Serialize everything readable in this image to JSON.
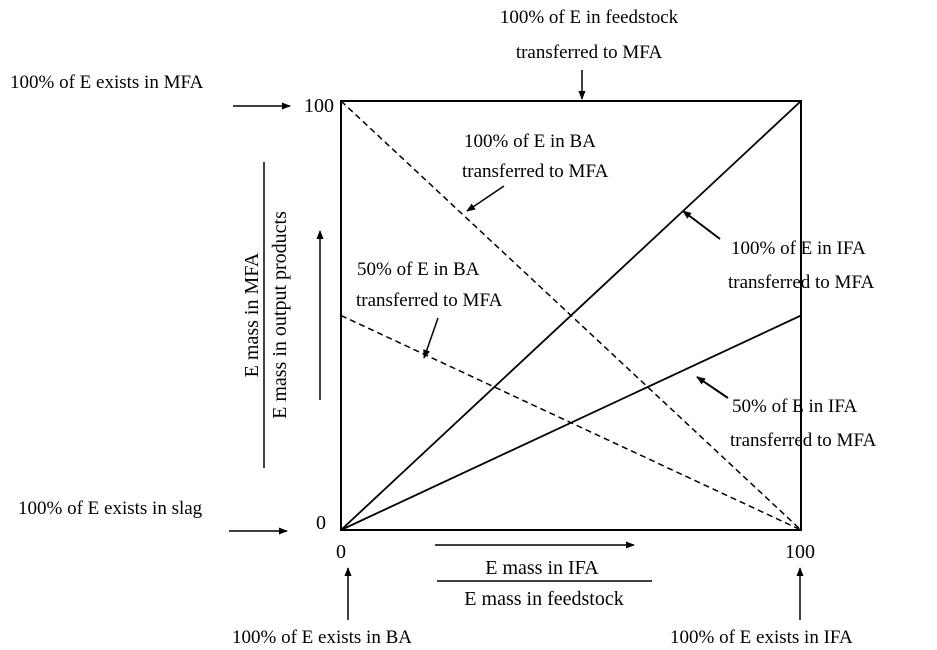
{
  "ticks": {
    "y_top": "100",
    "y_bottom": "0",
    "x_left": "0",
    "x_right": "100"
  },
  "axes": {
    "y_numerator": "E mass in MFA",
    "y_denominator": "E mass in output products",
    "x_numerator": "E mass in IFA",
    "x_denominator": "E mass in feedstock"
  },
  "annotations": {
    "feedstock_mfa": [
      "100% of E in feedstock",
      "transferred to MFA"
    ],
    "exists_mfa": "100% of E exists in MFA",
    "ba100": [
      "100% of E in BA",
      "transferred to MFA"
    ],
    "ifa100": [
      "100% of E in IFA",
      "transferred to MFA"
    ],
    "ba50": [
      "50% of E in BA",
      "transferred to MFA"
    ],
    "ifa50": [
      "50% of E in IFA",
      "transferred to MFA"
    ],
    "exists_slag": "100% of E exists in slag",
    "exists_ba": "100% of E exists in BA",
    "exists_ifa": "100% of E exists in IFA"
  },
  "lines": [
    {
      "from": [
        0,
        0
      ],
      "to": [
        100,
        100
      ],
      "style": "solid"
    },
    {
      "from": [
        0,
        0
      ],
      "to": [
        100,
        50
      ],
      "style": "solid"
    },
    {
      "from": [
        0,
        100
      ],
      "to": [
        100,
        0
      ],
      "style": "dashed"
    },
    {
      "from": [
        0,
        50
      ],
      "to": [
        100,
        0
      ],
      "style": "dashed"
    }
  ],
  "colors": {
    "ink": "#000000",
    "background": "#ffffff"
  }
}
